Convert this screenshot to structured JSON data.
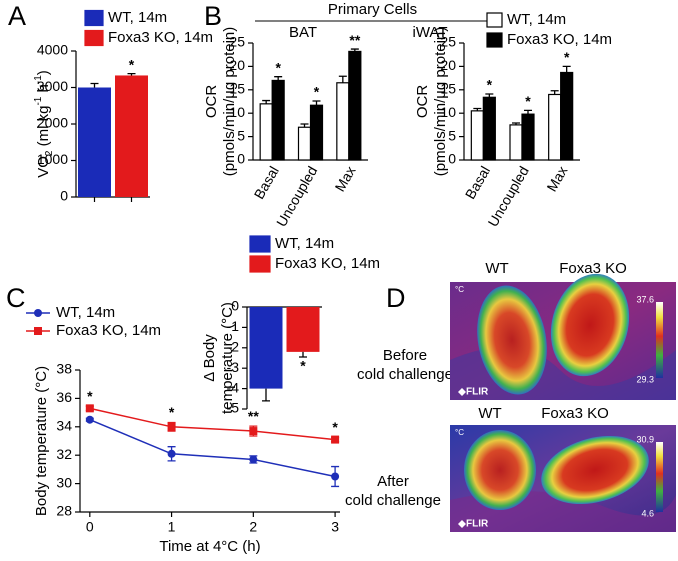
{
  "chart_data": [
    {
      "type": "bar",
      "panel_label": "A",
      "ylabel": [
        {
          "text": "VO"
        },
        {
          "text": "2",
          "shift": "sub"
        },
        {
          "text": " (ml kg"
        },
        {
          "text": "-1",
          "shift": "super"
        },
        {
          "text": " h"
        },
        {
          "text": "-1",
          "shift": "super"
        },
        {
          "text": ")"
        }
      ],
      "ylim": [
        0,
        4000
      ],
      "yticks": [
        0,
        1000,
        2000,
        3000,
        4000
      ],
      "series": [
        {
          "name": "WT, 14m",
          "color": "#1a2bb8",
          "values": [
            3000
          ],
          "errors": [
            110
          ]
        },
        {
          "name": "Foxa3 KO, 14m",
          "color": "#e31a1c",
          "values": [
            3330
          ],
          "errors": [
            50
          ],
          "significance": [
            "*"
          ]
        }
      ]
    },
    {
      "type": "bar",
      "panel_label": "B",
      "group_title": "Primary Cells",
      "title": "BAT",
      "ylabel": [
        "OCR",
        "(pmols/min/µg protein)"
      ],
      "categories": [
        "Basal",
        "Uncoupled",
        "Max"
      ],
      "ylim": [
        0,
        25
      ],
      "yticks": [
        0,
        5,
        10,
        15,
        20,
        25
      ],
      "edgecolor": "#000000",
      "series": [
        {
          "color": "#ffffff",
          "values": [
            12,
            7,
            16.5
          ],
          "errors": [
            0.7,
            0.7,
            1.4
          ]
        },
        {
          "color": "#000000",
          "values": [
            17,
            11.7,
            23.2
          ],
          "errors": [
            0.8,
            0.9,
            0.5
          ],
          "significance": [
            "*",
            "*",
            "**"
          ]
        }
      ]
    },
    {
      "type": "bar",
      "title": "iWAT",
      "ylabel": [
        "OCR",
        "(pmols/min/µg protein)"
      ],
      "categories": [
        "Basal",
        "Uncoupled",
        "Max"
      ],
      "ylim": [
        0,
        25
      ],
      "yticks": [
        0,
        5,
        10,
        15,
        20,
        25
      ],
      "edgecolor": "#000000",
      "series": [
        {
          "name": "WT, 14m",
          "color": "#ffffff",
          "values": [
            10.5,
            7.5,
            14
          ],
          "errors": [
            0.5,
            0.4,
            0.8
          ]
        },
        {
          "name": "Foxa3 KO, 14m",
          "color": "#000000",
          "values": [
            13.4,
            9.8,
            18.7
          ],
          "errors": [
            0.7,
            0.8,
            1.3
          ],
          "significance": [
            "*",
            "*",
            "*"
          ]
        }
      ]
    },
    {
      "type": "line",
      "panel_label": "C",
      "xlabel": "Time at 4°C (h)",
      "ylabel": [
        "Body temperature (°C)"
      ],
      "x": [
        0,
        1,
        2,
        3
      ],
      "xlim": [
        -0.12,
        3.06
      ],
      "xticks": [
        0,
        1,
        2,
        3
      ],
      "ylim": [
        28,
        38
      ],
      "yticks": [
        28,
        30,
        32,
        34,
        36,
        38
      ],
      "series": [
        {
          "name": "WT, 14m",
          "color": "#1f2fb8",
          "marker": "circle",
          "values": [
            34.5,
            32.1,
            31.7,
            30.5
          ],
          "errors": [
            0.1,
            0.5,
            0.25,
            0.7
          ]
        },
        {
          "name": "Foxa3 KO, 14m",
          "color": "#e31a1c",
          "marker": "square",
          "values": [
            35.3,
            34.0,
            33.7,
            33.1
          ],
          "errors": [
            0.15,
            0.3,
            0.35,
            0.15
          ],
          "significance": [
            "*",
            "*",
            "**",
            "*"
          ]
        }
      ]
    },
    {
      "type": "bar",
      "ylabel": [
        "Δ Body",
        "temperature (°C)"
      ],
      "ylim": [
        -5,
        0
      ],
      "yticks": [
        -5,
        -4,
        -3,
        -2,
        -1,
        0
      ],
      "series": [
        {
          "name": "WT, 14m",
          "color": "#1a2bb8",
          "values": [
            -4.0
          ],
          "errors": [
            0.6
          ]
        },
        {
          "name": "Foxa3 KO, 14m",
          "color": "#e31a1c",
          "values": [
            -2.2
          ],
          "errors": [
            0.25
          ],
          "significance": [
            "*"
          ]
        }
      ]
    }
  ],
  "thermal_images": {
    "panel_label": "D",
    "images": [
      {
        "labels": [
          "WT",
          "Foxa3 KO"
        ],
        "condition": [
          "Before",
          "cold challenge"
        ],
        "scale": [
          37.6,
          29.3
        ],
        "unit": "°C",
        "brand": "FLIR"
      },
      {
        "labels": [
          "WT",
          "Foxa3 KO"
        ],
        "condition": [
          "After",
          "cold challenge"
        ],
        "scale": [
          30.9,
          4.6
        ],
        "unit": "°C",
        "brand": "FLIR"
      }
    ]
  }
}
